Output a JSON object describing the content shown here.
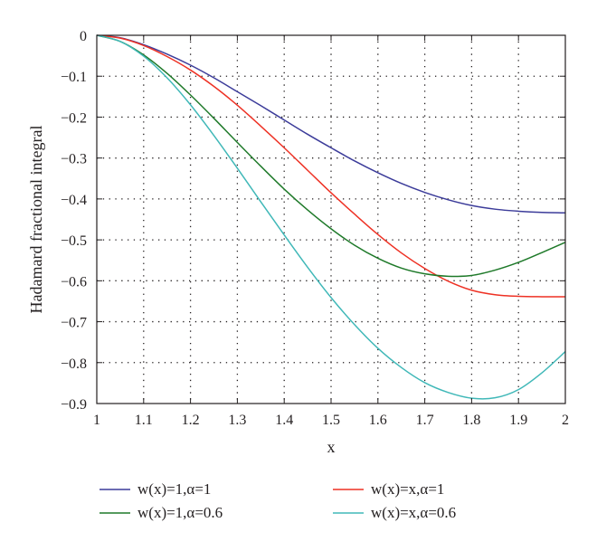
{
  "chart_data": {
    "type": "line",
    "xlabel": "x",
    "ylabel": "Hadamard fractional integral",
    "xlim": [
      1,
      2
    ],
    "ylim": [
      -0.9,
      0
    ],
    "xticks": [
      "1",
      "1.1",
      "1.2",
      "1.3",
      "1.4",
      "1.5",
      "1.6",
      "1.7",
      "1.8",
      "1.9",
      "2"
    ],
    "yticks": [
      "0",
      "−0.1",
      "−0.2",
      "−0.3",
      "−0.4",
      "−0.5",
      "−0.6",
      "−0.7",
      "−0.8",
      "−0.9"
    ],
    "grid": true,
    "legend_position": "bottom",
    "x": [
      1.0,
      1.05,
      1.1,
      1.15,
      1.2,
      1.25,
      1.3,
      1.35,
      1.4,
      1.45,
      1.5,
      1.55,
      1.6,
      1.65,
      1.7,
      1.75,
      1.8,
      1.85,
      1.9,
      1.95,
      2.0
    ],
    "series": [
      {
        "name": "w(x)=1,α=1",
        "color": "#3c3c9a",
        "values": [
          0,
          -0.006,
          -0.023,
          -0.046,
          -0.073,
          -0.104,
          -0.138,
          -0.172,
          -0.207,
          -0.242,
          -0.275,
          -0.307,
          -0.336,
          -0.362,
          -0.384,
          -0.402,
          -0.416,
          -0.425,
          -0.43,
          -0.433,
          -0.434
        ]
      },
      {
        "name": "w(x)=x,α=1",
        "color": "#ee3124",
        "values": [
          0,
          -0.007,
          -0.025,
          -0.052,
          -0.085,
          -0.125,
          -0.171,
          -0.222,
          -0.275,
          -0.33,
          -0.385,
          -0.437,
          -0.487,
          -0.532,
          -0.57,
          -0.601,
          -0.623,
          -0.634,
          -0.638,
          -0.639,
          -0.639
        ]
      },
      {
        "name": "w(x)=1,α=0.6",
        "color": "#1f7a2a",
        "values": [
          0,
          -0.015,
          -0.048,
          -0.093,
          -0.146,
          -0.203,
          -0.262,
          -0.32,
          -0.376,
          -0.427,
          -0.473,
          -0.513,
          -0.545,
          -0.569,
          -0.583,
          -0.589,
          -0.587,
          -0.574,
          -0.555,
          -0.531,
          -0.506
        ]
      },
      {
        "name": "w(x)=x,α=0.6",
        "color": "#40b8b8",
        "values": [
          0,
          -0.015,
          -0.051,
          -0.104,
          -0.17,
          -0.245,
          -0.325,
          -0.407,
          -0.488,
          -0.567,
          -0.641,
          -0.707,
          -0.765,
          -0.812,
          -0.849,
          -0.873,
          -0.887,
          -0.886,
          -0.866,
          -0.825,
          -0.773
        ]
      }
    ]
  }
}
